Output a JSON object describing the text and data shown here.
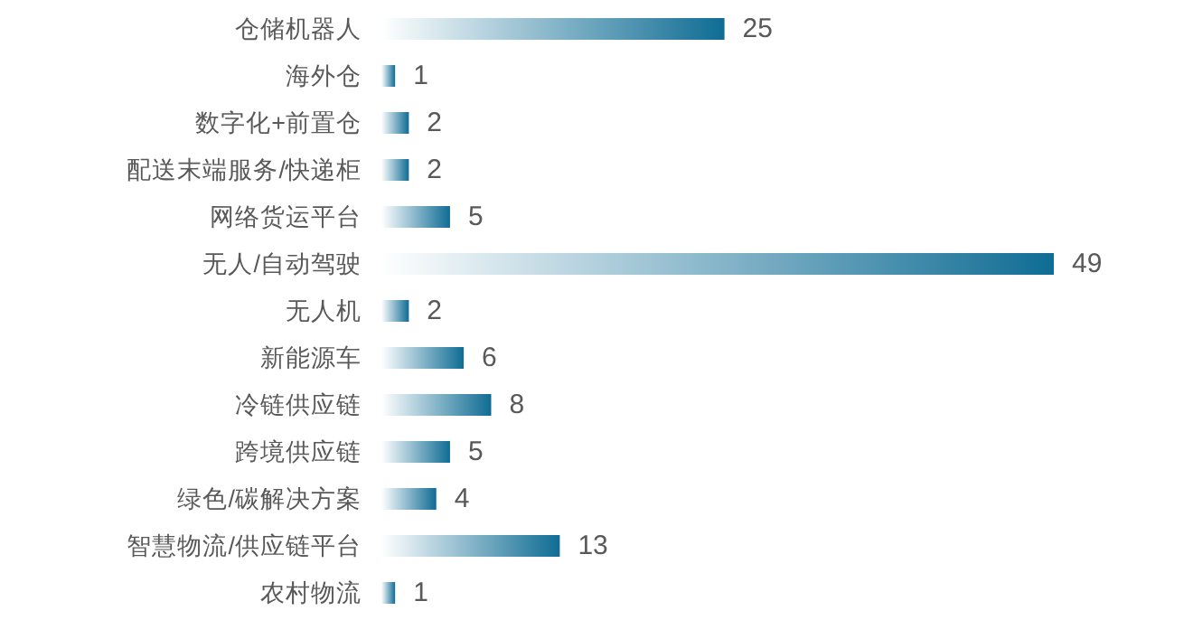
{
  "chart_data": {
    "type": "bar",
    "orientation": "horizontal",
    "data_labels": true,
    "color": "#0f6c94",
    "categories": [
      "仓储机器人",
      "海外仓",
      "数字化+前置仓",
      "配送末端服务/快递柜",
      "网络货运平台",
      "无人/自动驾驶",
      "无人机",
      "新能源车",
      "冷链供应链",
      "跨境供应链",
      "绿色/碳解决方案",
      "智慧物流/供应链平台",
      "农村物流"
    ],
    "values": [
      25,
      1,
      2,
      2,
      5,
      49,
      2,
      6,
      8,
      5,
      4,
      13,
      1
    ]
  }
}
